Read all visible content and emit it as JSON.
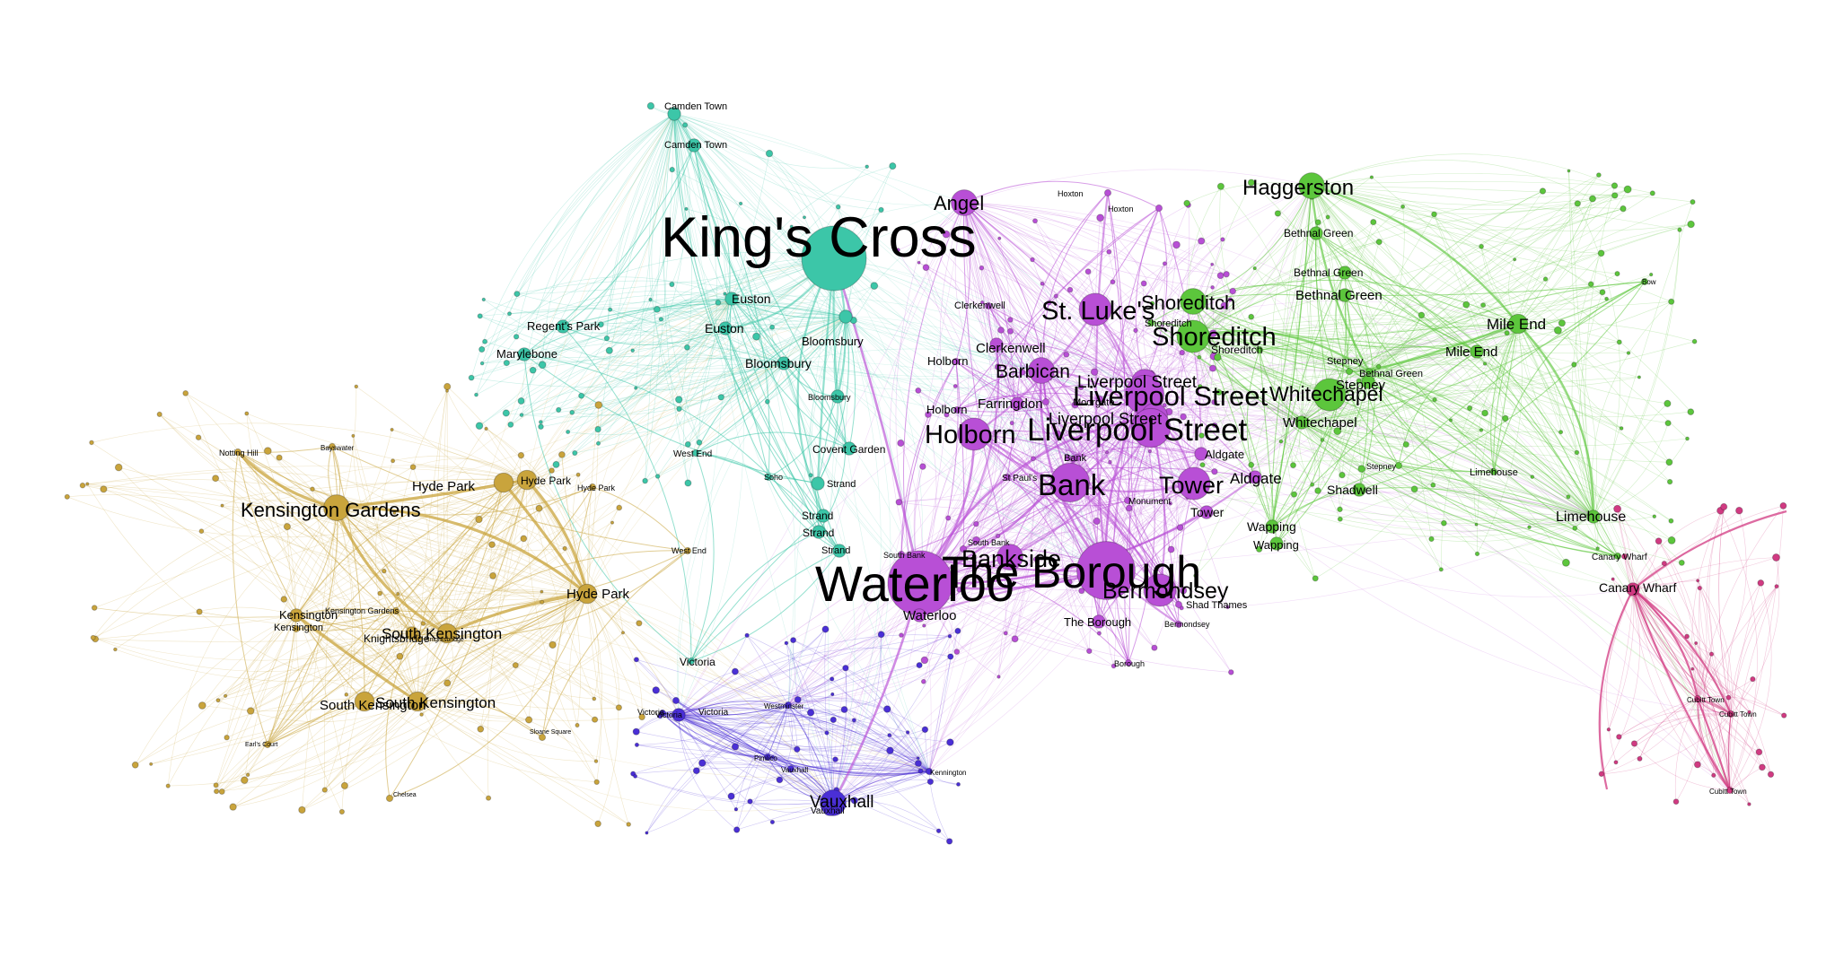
{
  "communities": [
    {
      "id": "camden",
      "color": "#3cc6a8"
    },
    {
      "id": "west",
      "color": "#c9a43c"
    },
    {
      "id": "central",
      "color": "#b84fd6"
    },
    {
      "id": "east",
      "color": "#5cc63c"
    },
    {
      "id": "south",
      "color": "#4a2fd6"
    },
    {
      "id": "docklands",
      "color": "#d13a82"
    }
  ],
  "nodes": [
    {
      "label": "King's Cross",
      "c": "camden",
      "w": 10
    },
    {
      "label": "Camden Town",
      "c": "camden",
      "w": 2
    },
    {
      "label": "Camden Town",
      "c": "camden",
      "w": 2
    },
    {
      "label": "Regent's Park",
      "c": "camden",
      "w": 2
    },
    {
      "label": "Marylebone",
      "c": "camden",
      "w": 2
    },
    {
      "label": "Euston",
      "c": "camden",
      "w": 2
    },
    {
      "label": "Euston",
      "c": "camden",
      "w": 2
    },
    {
      "label": "Bloomsbury",
      "c": "camden",
      "w": 2
    },
    {
      "label": "Bloomsbury",
      "c": "camden",
      "w": 2
    },
    {
      "label": "Bloomsbury",
      "c": "camden",
      "w": 2
    },
    {
      "label": "Covent Garden",
      "c": "camden",
      "w": 2
    },
    {
      "label": "Strand",
      "c": "camden",
      "w": 2
    },
    {
      "label": "Strand",
      "c": "camden",
      "w": 2
    },
    {
      "label": "Strand",
      "c": "camden",
      "w": 2
    },
    {
      "label": "Strand",
      "c": "camden",
      "w": 2
    },
    {
      "label": "West End",
      "c": "camden",
      "w": 1
    },
    {
      "label": "Soho",
      "c": "camden",
      "w": 1
    },
    {
      "label": "Victoria",
      "c": "camden",
      "w": 1
    },
    {
      "label": "Kensington Gardens",
      "c": "west",
      "w": 4
    },
    {
      "label": "Hyde Park",
      "c": "west",
      "w": 3
    },
    {
      "label": "Hyde Park",
      "c": "west",
      "w": 3
    },
    {
      "label": "Hyde Park",
      "c": "west",
      "w": 3
    },
    {
      "label": "Hyde Park",
      "c": "west",
      "w": 1
    },
    {
      "label": "Notting Hill",
      "c": "west",
      "w": 1
    },
    {
      "label": "Bayswater",
      "c": "west",
      "w": 1
    },
    {
      "label": "Kensington",
      "c": "west",
      "w": 2
    },
    {
      "label": "Kensington",
      "c": "west",
      "w": 1
    },
    {
      "label": "South Kensington",
      "c": "west",
      "w": 3
    },
    {
      "label": "South Kensington",
      "c": "west",
      "w": 3
    },
    {
      "label": "South Kensington",
      "c": "west",
      "w": 3
    },
    {
      "label": "Knightsbridge",
      "c": "west",
      "w": 2
    },
    {
      "label": "Knightsbridge",
      "c": "west",
      "w": 1
    },
    {
      "label": "Kensington Gardens",
      "c": "west",
      "w": 1
    },
    {
      "label": "Chelsea",
      "c": "west",
      "w": 1
    },
    {
      "label": "Earl's Court",
      "c": "west",
      "w": 1
    },
    {
      "label": "Sloane Square",
      "c": "west",
      "w": 1
    },
    {
      "label": "West End",
      "c": "west",
      "w": 1
    },
    {
      "label": "Angel",
      "c": "central",
      "w": 4
    },
    {
      "label": "Hoxton",
      "c": "central",
      "w": 1
    },
    {
      "label": "Hoxton",
      "c": "central",
      "w": 1
    },
    {
      "label": "St. Luke's",
      "c": "central",
      "w": 5
    },
    {
      "label": "Clerkenwell",
      "c": "central",
      "w": 1
    },
    {
      "label": "Clerkenwell",
      "c": "central",
      "w": 2
    },
    {
      "label": "Holborn",
      "c": "central",
      "w": 1
    },
    {
      "label": "Holborn",
      "c": "central",
      "w": 1
    },
    {
      "label": "Barbican",
      "c": "central",
      "w": 4
    },
    {
      "label": "Farringdon",
      "c": "central",
      "w": 2
    },
    {
      "label": "Holborn",
      "c": "central",
      "w": 5
    },
    {
      "label": "Bank",
      "c": "central",
      "w": 6
    },
    {
      "label": "Bank",
      "c": "central",
      "w": 1
    },
    {
      "label": "St Paul's",
      "c": "central",
      "w": 1
    },
    {
      "label": "Moorgate",
      "c": "central",
      "w": 1
    },
    {
      "label": "Liverpool Street",
      "c": "central",
      "w": 4
    },
    {
      "label": "Liverpool Street",
      "c": "central",
      "w": 6
    },
    {
      "label": "Liverpool Street",
      "c": "central",
      "w": 4
    },
    {
      "label": "Liverpool Street",
      "c": "central",
      "w": 6
    },
    {
      "label": "Tower",
      "c": "central",
      "w": 5
    },
    {
      "label": "Tower",
      "c": "central",
      "w": 2
    },
    {
      "label": "Monument",
      "c": "central",
      "w": 1
    },
    {
      "label": "Aldgate",
      "c": "central",
      "w": 2
    },
    {
      "label": "Aldgate",
      "c": "central",
      "w": 2
    },
    {
      "label": "Waterloo",
      "c": "central",
      "w": 10
    },
    {
      "label": "Waterloo",
      "c": "central",
      "w": 2
    },
    {
      "label": "South Bank",
      "c": "central",
      "w": 1
    },
    {
      "label": "South Bank",
      "c": "central",
      "w": 1
    },
    {
      "label": "Bankside",
      "c": "central",
      "w": 4
    },
    {
      "label": "The Borough",
      "c": "central",
      "w": 9
    },
    {
      "label": "The Borough",
      "c": "central",
      "w": 2
    },
    {
      "label": "Bermondsey",
      "c": "central",
      "w": 5
    },
    {
      "label": "Bermondsey",
      "c": "central",
      "w": 1
    },
    {
      "label": "Shad Thames",
      "c": "central",
      "w": 1
    },
    {
      "label": "Borough",
      "c": "central",
      "w": 1
    },
    {
      "label": "Shoreditch",
      "c": "east",
      "w": 4
    },
    {
      "label": "Shoreditch",
      "c": "east",
      "w": 5
    },
    {
      "label": "Shoreditch",
      "c": "east",
      "w": 1
    },
    {
      "label": "Shoreditch",
      "c": "east",
      "w": 1
    },
    {
      "label": "Haggerston",
      "c": "east",
      "w": 4
    },
    {
      "label": "Bethnal Green",
      "c": "east",
      "w": 2
    },
    {
      "label": "Bethnal Green",
      "c": "east",
      "w": 2
    },
    {
      "label": "Bethnal Green",
      "c": "east",
      "w": 2
    },
    {
      "label": "Bethnal Green",
      "c": "east",
      "w": 1
    },
    {
      "label": "Whitechapel",
      "c": "east",
      "w": 5
    },
    {
      "label": "Whitechapel",
      "c": "east",
      "w": 2
    },
    {
      "label": "Stepney",
      "c": "east",
      "w": 2
    },
    {
      "label": "Stepney",
      "c": "east",
      "w": 1
    },
    {
      "label": "Stepney",
      "c": "east",
      "w": 1
    },
    {
      "label": "Mile End",
      "c": "east",
      "w": 3
    },
    {
      "label": "Mile End",
      "c": "east",
      "w": 2
    },
    {
      "label": "Shadwell",
      "c": "east",
      "w": 2
    },
    {
      "label": "Wapping",
      "c": "east",
      "w": 2
    },
    {
      "label": "Wapping",
      "c": "east",
      "w": 2
    },
    {
      "label": "Limehouse",
      "c": "east",
      "w": 2
    },
    {
      "label": "Limehouse",
      "c": "east",
      "w": 1
    },
    {
      "label": "Bow",
      "c": "east",
      "w": 1
    },
    {
      "label": "Canary Wharf",
      "c": "east",
      "w": 1
    },
    {
      "label": "Victoria",
      "c": "south",
      "w": 1
    },
    {
      "label": "Victoria",
      "c": "south",
      "w": 2
    },
    {
      "label": "Victoria",
      "c": "south",
      "w": 1
    },
    {
      "label": "Westminster",
      "c": "south",
      "w": 1
    },
    {
      "label": "Pimlico",
      "c": "south",
      "w": 1
    },
    {
      "label": "Vauxhall",
      "c": "south",
      "w": 4
    },
    {
      "label": "Vauxhall",
      "c": "south",
      "w": 2
    },
    {
      "label": "Vauxhall",
      "c": "south",
      "w": 1
    },
    {
      "label": "Kennington",
      "c": "south",
      "w": 1
    },
    {
      "label": "Canary Wharf",
      "c": "docklands",
      "w": 2
    },
    {
      "label": "Cubitt Town",
      "c": "docklands",
      "w": 1
    },
    {
      "label": "Cubitt Town",
      "c": "docklands",
      "w": 1
    },
    {
      "label": "Cubitt Town",
      "c": "docklands",
      "w": 1
    }
  ]
}
